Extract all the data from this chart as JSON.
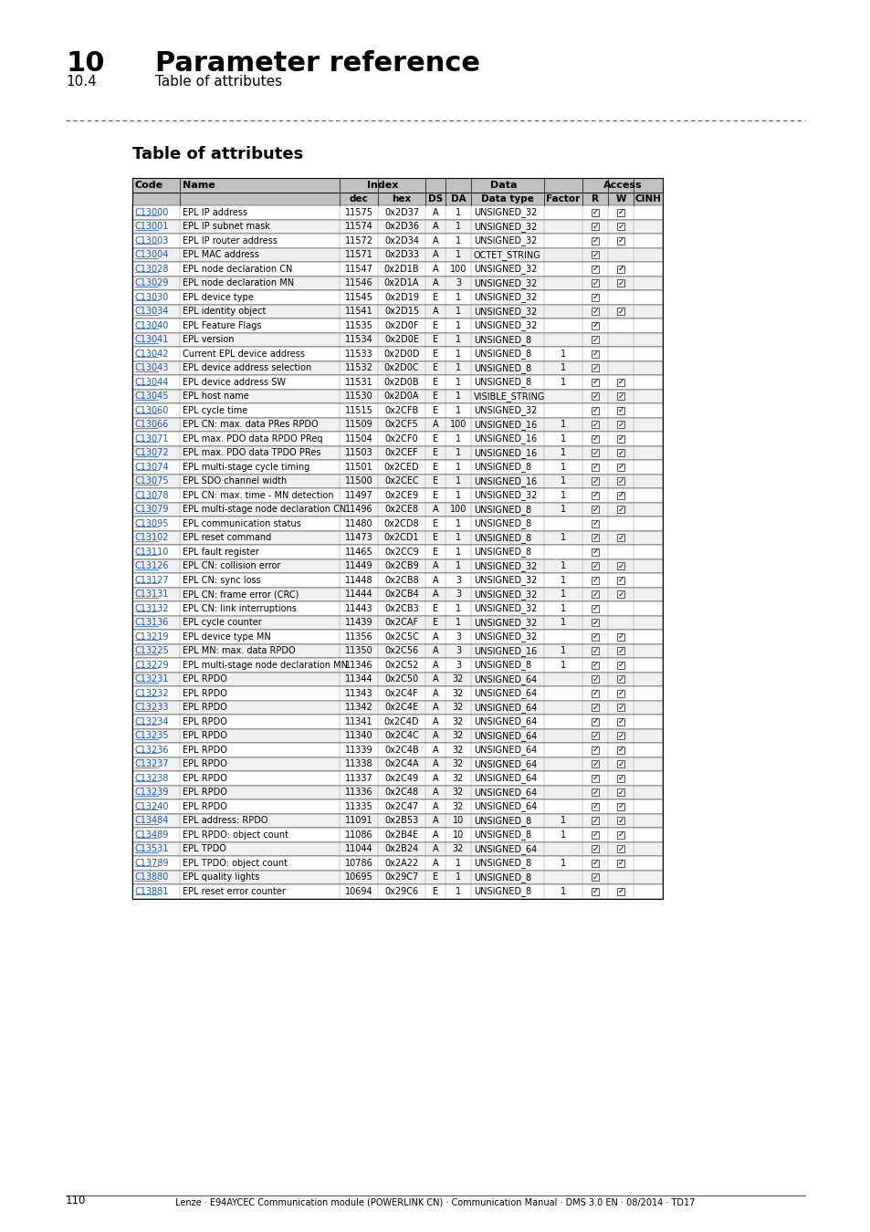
{
  "title_number": "10",
  "title_text": "Parameter reference",
  "subtitle_number": "10.4",
  "subtitle_text": "Table of attributes",
  "section_title": "Table of attributes",
  "footer_text": "110        Lenze · E94AYCEC Communication module (POWERLINK CN) · Communication Manual · DMS 3.0 EN · 08/2014 · TD17",
  "col_headers_row1": [
    "Code",
    "Name",
    "Index",
    "",
    "Data",
    "",
    "",
    "",
    "Access",
    "",
    ""
  ],
  "col_headers_row2": [
    "",
    "",
    "dec",
    "hex",
    "DS",
    "DA",
    "Data type",
    "Factor",
    "R",
    "W",
    "CINH"
  ],
  "col_spans_row1": [
    {
      "text": "Code",
      "cols": [
        0
      ],
      "align": "left"
    },
    {
      "text": "Name",
      "cols": [
        1
      ],
      "align": "left"
    },
    {
      "text": "Index",
      "cols": [
        2,
        3
      ],
      "align": "center"
    },
    {
      "text": "Data",
      "cols": [
        4,
        5,
        6,
        7
      ],
      "align": "center"
    },
    {
      "text": "Access",
      "cols": [
        8,
        9,
        10
      ],
      "align": "center"
    }
  ],
  "rows": [
    [
      "C13000",
      "EPL IP address",
      "11575",
      "0x2D37",
      "A",
      "1",
      "UNSIGNED_32",
      "",
      "R",
      "W",
      ""
    ],
    [
      "C13001",
      "EPL IP subnet mask",
      "11574",
      "0x2D36",
      "A",
      "1",
      "UNSIGNED_32",
      "",
      "R",
      "W",
      ""
    ],
    [
      "C13003",
      "EPL IP router address",
      "11572",
      "0x2D34",
      "A",
      "1",
      "UNSIGNED_32",
      "",
      "R",
      "W",
      ""
    ],
    [
      "C13004",
      "EPL MAC address",
      "11571",
      "0x2D33",
      "A",
      "1",
      "OCTET_STRING",
      "",
      "R",
      "",
      ""
    ],
    [
      "C13028",
      "EPL node declaration CN",
      "11547",
      "0x2D1B",
      "A",
      "100",
      "UNSIGNED_32",
      "",
      "R",
      "W",
      ""
    ],
    [
      "C13029",
      "EPL node declaration MN",
      "11546",
      "0x2D1A",
      "A",
      "3",
      "UNSIGNED_32",
      "",
      "R",
      "W",
      ""
    ],
    [
      "C13030",
      "EPL device type",
      "11545",
      "0x2D19",
      "E",
      "1",
      "UNSIGNED_32",
      "",
      "R",
      "",
      ""
    ],
    [
      "C13034",
      "EPL identity object",
      "11541",
      "0x2D15",
      "A",
      "1",
      "UNSIGNED_32",
      "",
      "R",
      "W",
      ""
    ],
    [
      "C13040",
      "EPL Feature Flags",
      "11535",
      "0x2D0F",
      "E",
      "1",
      "UNSIGNED_32",
      "",
      "R",
      "",
      ""
    ],
    [
      "C13041",
      "EPL version",
      "11534",
      "0x2D0E",
      "E",
      "1",
      "UNSIGNED_8",
      "",
      "R",
      "",
      ""
    ],
    [
      "C13042",
      "Current EPL device address",
      "11533",
      "0x2D0D",
      "E",
      "1",
      "UNSIGNED_8",
      "1",
      "R",
      "",
      ""
    ],
    [
      "C13043",
      "EPL device address selection",
      "11532",
      "0x2D0C",
      "E",
      "1",
      "UNSIGNED_8",
      "1",
      "R",
      "",
      ""
    ],
    [
      "C13044",
      "EPL device address SW",
      "11531",
      "0x2D0B",
      "E",
      "1",
      "UNSIGNED_8",
      "1",
      "R",
      "W",
      ""
    ],
    [
      "C13045",
      "EPL host name",
      "11530",
      "0x2D0A",
      "E",
      "1",
      "VISIBLE_STRING",
      "",
      "R",
      "W",
      ""
    ],
    [
      "C13060",
      "EPL cycle time",
      "11515",
      "0x2CFB",
      "E",
      "1",
      "UNSIGNED_32",
      "",
      "R",
      "W",
      ""
    ],
    [
      "C13066",
      "EPL CN: max. data PRes RPDO",
      "11509",
      "0x2CF5",
      "A",
      "100",
      "UNSIGNED_16",
      "1",
      "R",
      "W",
      ""
    ],
    [
      "C13071",
      "EPL max. PDO data RPDO PReq",
      "11504",
      "0x2CF0",
      "E",
      "1",
      "UNSIGNED_16",
      "1",
      "R",
      "W",
      ""
    ],
    [
      "C13072",
      "EPL max. PDO data TPDO PRes",
      "11503",
      "0x2CEF",
      "E",
      "1",
      "UNSIGNED_16",
      "1",
      "R",
      "W",
      ""
    ],
    [
      "C13074",
      "EPL multi-stage cycle timing",
      "11501",
      "0x2CED",
      "E",
      "1",
      "UNSIGNED_8",
      "1",
      "R",
      "W",
      ""
    ],
    [
      "C13075",
      "EPL SDO channel width",
      "11500",
      "0x2CEC",
      "E",
      "1",
      "UNSIGNED_16",
      "1",
      "R",
      "W",
      ""
    ],
    [
      "C13078",
      "EPL CN: max. time - MN detection",
      "11497",
      "0x2CE9",
      "E",
      "1",
      "UNSIGNED_32",
      "1",
      "R",
      "W",
      ""
    ],
    [
      "C13079",
      "EPL multi-stage node declaration CN",
      "11496",
      "0x2CE8",
      "A",
      "100",
      "UNSIGNED_8",
      "1",
      "R",
      "W",
      ""
    ],
    [
      "C13095",
      "EPL communication status",
      "11480",
      "0x2CD8",
      "E",
      "1",
      "UNSIGNED_8",
      "",
      "R",
      "",
      ""
    ],
    [
      "C13102",
      "EPL reset command",
      "11473",
      "0x2CD1",
      "E",
      "1",
      "UNSIGNED_8",
      "1",
      "R",
      "W",
      ""
    ],
    [
      "C13110",
      "EPL fault register",
      "11465",
      "0x2CC9",
      "E",
      "1",
      "UNSIGNED_8",
      "",
      "R",
      "",
      ""
    ],
    [
      "C13126",
      "EPL CN: collision error",
      "11449",
      "0x2CB9",
      "A",
      "1",
      "UNSIGNED_32",
      "1",
      "R",
      "W",
      ""
    ],
    [
      "C13127",
      "EPL CN: sync loss",
      "11448",
      "0x2CB8",
      "A",
      "3",
      "UNSIGNED_32",
      "1",
      "R",
      "W",
      ""
    ],
    [
      "C13131",
      "EPL CN: frame error (CRC)",
      "11444",
      "0x2CB4",
      "A",
      "3",
      "UNSIGNED_32",
      "1",
      "R",
      "W",
      ""
    ],
    [
      "C13132",
      "EPL CN: link interruptions",
      "11443",
      "0x2CB3",
      "E",
      "1",
      "UNSIGNED_32",
      "1",
      "R",
      "",
      ""
    ],
    [
      "C13136",
      "EPL cycle counter",
      "11439",
      "0x2CAF",
      "E",
      "1",
      "UNSIGNED_32",
      "1",
      "R",
      "",
      ""
    ],
    [
      "C13219",
      "EPL device type MN",
      "11356",
      "0x2C5C",
      "A",
      "3",
      "UNSIGNED_32",
      "",
      "R",
      "W",
      ""
    ],
    [
      "C13225",
      "EPL MN: max. data RPDO",
      "11350",
      "0x2C56",
      "A",
      "3",
      "UNSIGNED_16",
      "1",
      "R",
      "W",
      ""
    ],
    [
      "C13229",
      "EPL multi-stage node declaration MN",
      "11346",
      "0x2C52",
      "A",
      "3",
      "UNSIGNED_8",
      "1",
      "R",
      "W",
      ""
    ],
    [
      "C13231",
      "EPL RPDO",
      "11344",
      "0x2C50",
      "A",
      "32",
      "UNSIGNED_64",
      "",
      "R",
      "W",
      ""
    ],
    [
      "C13232",
      "EPL RPDO",
      "11343",
      "0x2C4F",
      "A",
      "32",
      "UNSIGNED_64",
      "",
      "R",
      "W",
      ""
    ],
    [
      "C13233",
      "EPL RPDO",
      "11342",
      "0x2C4E",
      "A",
      "32",
      "UNSIGNED_64",
      "",
      "R",
      "W",
      ""
    ],
    [
      "C13234",
      "EPL RPDO",
      "11341",
      "0x2C4D",
      "A",
      "32",
      "UNSIGNED_64",
      "",
      "R",
      "W",
      ""
    ],
    [
      "C13235",
      "EPL RPDO",
      "11340",
      "0x2C4C",
      "A",
      "32",
      "UNSIGNED_64",
      "",
      "R",
      "W",
      ""
    ],
    [
      "C13236",
      "EPL RPDO",
      "11339",
      "0x2C4B",
      "A",
      "32",
      "UNSIGNED_64",
      "",
      "R",
      "W",
      ""
    ],
    [
      "C13237",
      "EPL RPDO",
      "11338",
      "0x2C4A",
      "A",
      "32",
      "UNSIGNED_64",
      "",
      "R",
      "W",
      ""
    ],
    [
      "C13238",
      "EPL RPDO",
      "11337",
      "0x2C49",
      "A",
      "32",
      "UNSIGNED_64",
      "",
      "R",
      "W",
      ""
    ],
    [
      "C13239",
      "EPL RPDO",
      "11336",
      "0x2C48",
      "A",
      "32",
      "UNSIGNED_64",
      "",
      "R",
      "W",
      ""
    ],
    [
      "C13240",
      "EPL RPDO",
      "11335",
      "0x2C47",
      "A",
      "32",
      "UNSIGNED_64",
      "",
      "R",
      "W",
      ""
    ],
    [
      "C13484",
      "EPL address: RPDO",
      "11091",
      "0x2B53",
      "A",
      "10",
      "UNSIGNED_8",
      "1",
      "R",
      "W",
      ""
    ],
    [
      "C13489",
      "EPL RPDO: object count",
      "11086",
      "0x2B4E",
      "A",
      "10",
      "UNSIGNED_8",
      "1",
      "R",
      "W",
      ""
    ],
    [
      "C13531",
      "EPL TPDO",
      "11044",
      "0x2B24",
      "A",
      "32",
      "UNSIGNED_64",
      "",
      "R",
      "W",
      ""
    ],
    [
      "C13789",
      "EPL TPDO: object count",
      "10786",
      "0x2A22",
      "A",
      "1",
      "UNSIGNED_8",
      "1",
      "R",
      "W",
      ""
    ],
    [
      "C13880",
      "EPL quality lights",
      "10695",
      "0x29C7",
      "E",
      "1",
      "UNSIGNED_8",
      "",
      "R",
      "",
      ""
    ],
    [
      "C13881",
      "EPL reset error counter",
      "10694",
      "0x29C6",
      "E",
      "1",
      "UNSIGNED_8",
      "1",
      "R",
      "W",
      ""
    ]
  ],
  "bg_header": "#c0c0c0",
  "bg_white": "#ffffff",
  "bg_light": "#f5f5f5",
  "link_color": "#1155cc",
  "border_color": "#000000",
  "text_color": "#000000"
}
